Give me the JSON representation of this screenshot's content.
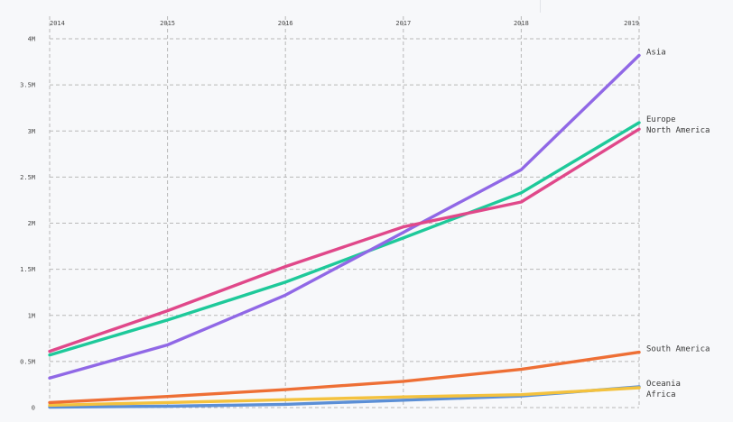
{
  "chart_data": {
    "type": "line",
    "title": "",
    "xlabel": "",
    "ylabel": "",
    "x": [
      2014,
      2015,
      2016,
      2017,
      2018,
      2019
    ],
    "x_tick_labels": [
      "2014",
      "2015",
      "2016",
      "2017",
      "2018",
      "2019"
    ],
    "ylim": [
      0,
      4000000
    ],
    "y_ticks": [
      0,
      500000,
      1000000,
      1500000,
      2000000,
      2500000,
      3000000,
      3500000,
      4000000
    ],
    "y_tick_labels": [
      "0",
      "0.5M",
      "1M",
      "1.5M",
      "2M",
      "2.5M",
      "3M",
      "3.5M",
      "4M"
    ],
    "grid": true,
    "legend": "end-of-line labels",
    "series": [
      {
        "name": "Asia",
        "color": "#9068e6",
        "values": [
          320000,
          680000,
          1220000,
          1900000,
          2580000,
          3820000
        ]
      },
      {
        "name": "Europe",
        "color": "#1ec99a",
        "values": [
          570000,
          950000,
          1360000,
          1840000,
          2330000,
          3090000
        ]
      },
      {
        "name": "North America",
        "color": "#e0488a",
        "values": [
          610000,
          1050000,
          1530000,
          1960000,
          2230000,
          3020000
        ]
      },
      {
        "name": "South America",
        "color": "#ee6f35",
        "values": [
          55000,
          120000,
          195000,
          285000,
          415000,
          600000
        ]
      },
      {
        "name": "Africa",
        "color": "#f4c23e",
        "values": [
          25000,
          55000,
          85000,
          115000,
          140000,
          215000
        ]
      },
      {
        "name": "Oceania",
        "color": "#5b8fd6",
        "values": [
          5000,
          15000,
          35000,
          80000,
          125000,
          225000
        ]
      }
    ]
  }
}
